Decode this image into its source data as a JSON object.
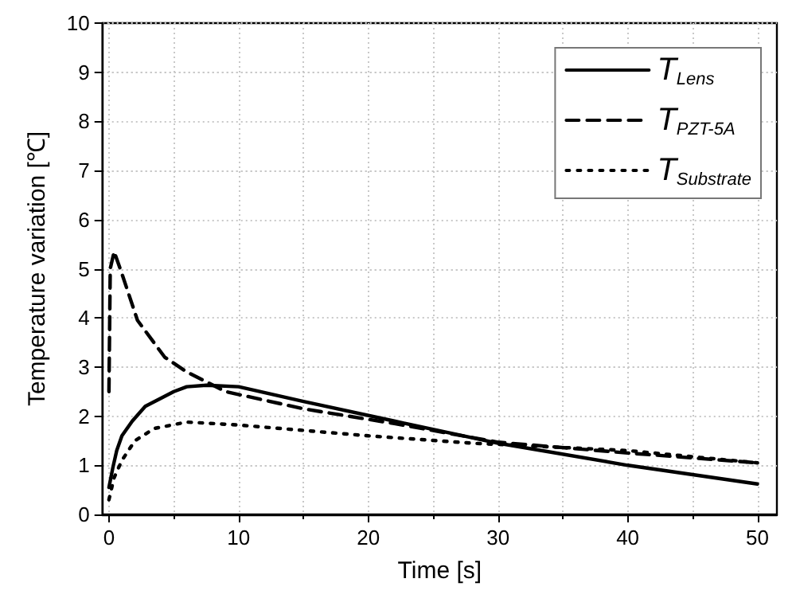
{
  "chart_data": {
    "type": "line",
    "xlabel": "Time [s]",
    "ylabel": "Temperature variation [℃]",
    "xlim": [
      -0.5,
      51.5
    ],
    "ylim": [
      0,
      10
    ],
    "xticks": [
      0,
      10,
      20,
      30,
      40,
      50
    ],
    "yticks": [
      0,
      1,
      2,
      3,
      4,
      5,
      6,
      7,
      8,
      9,
      10
    ],
    "grid": true,
    "legend": "top right",
    "marker": "none",
    "series": [
      {
        "name": "T$_{Lens}$",
        "color": "#000000",
        "line_style": "solid",
        "x": [
          0,
          0.3,
          0.6,
          1,
          1.8,
          2.8,
          3.9,
          5,
          6,
          7.5,
          10,
          15,
          22,
          30,
          40,
          50
        ],
        "values": [
          0.55,
          0.95,
          1.3,
          1.6,
          1.9,
          2.2,
          2.35,
          2.5,
          2.6,
          2.63,
          2.6,
          2.3,
          1.9,
          1.45,
          1.0,
          0.62
        ]
      },
      {
        "name": "T$_{PZT-5A}$",
        "color": "#000000",
        "line_style": "dashed",
        "x": [
          0,
          0.1,
          0.4,
          1,
          2.2,
          4.3,
          6,
          9,
          15,
          22,
          30,
          40,
          50
        ],
        "values": [
          2.5,
          5.0,
          5.35,
          4.9,
          3.95,
          3.2,
          2.9,
          2.5,
          2.15,
          1.85,
          1.47,
          1.25,
          1.05
        ]
      },
      {
        "name": "T$_{Substrate}$",
        "color": "#000000",
        "line_style": "dotted",
        "x": [
          0,
          0.4,
          1,
          2,
          3.5,
          6,
          10,
          20,
          28,
          40,
          50
        ],
        "values": [
          0.3,
          0.75,
          1.1,
          1.5,
          1.75,
          1.88,
          1.82,
          1.6,
          1.45,
          1.3,
          1.05
        ]
      }
    ]
  }
}
